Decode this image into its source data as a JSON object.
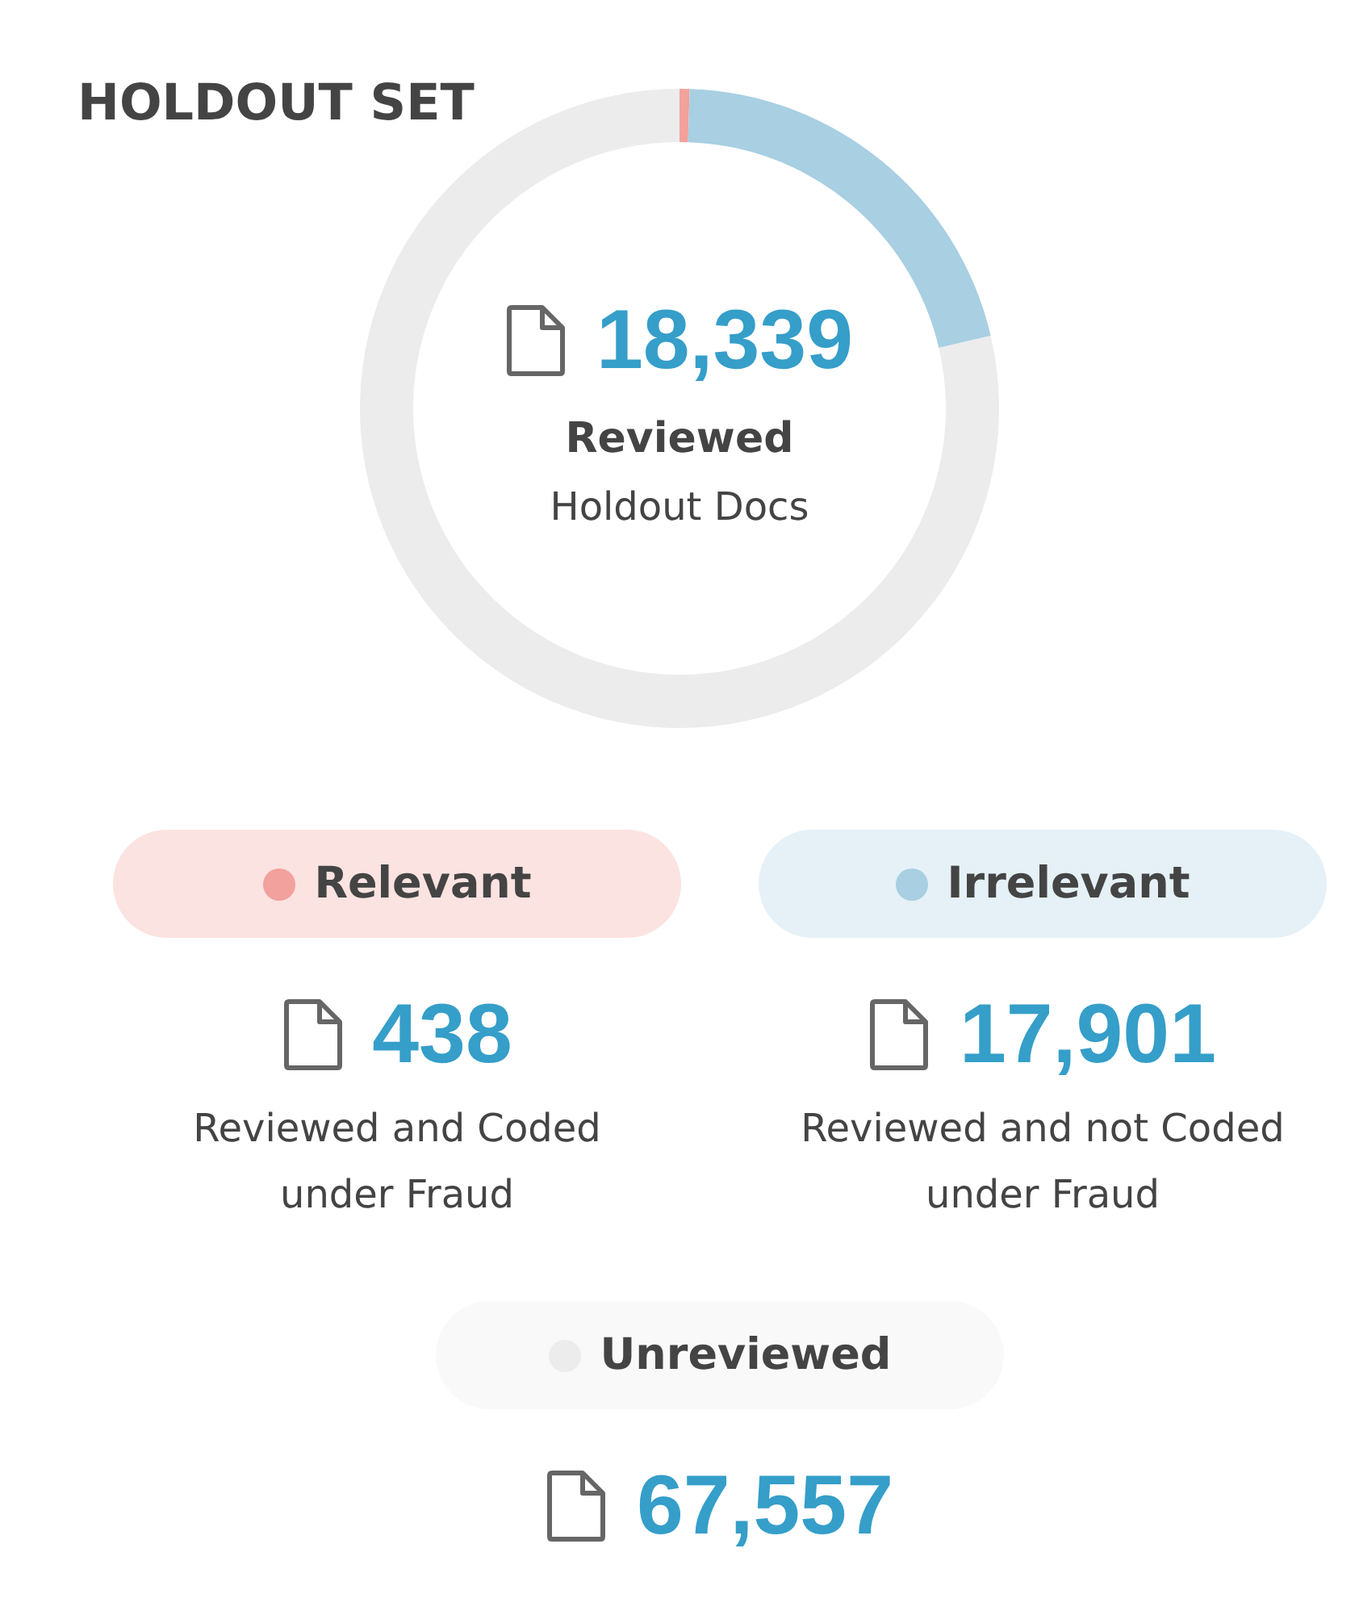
{
  "chart_data": {
    "type": "donut",
    "title": "HOLDOUT SET",
    "categories": [
      "Relevant",
      "Irrelevant",
      "Unreviewed"
    ],
    "values": [
      438,
      17901,
      67557
    ],
    "value_labels": [
      "438",
      "17,901",
      "67,557"
    ],
    "colors": [
      "#f2a19c",
      "#a8cfe2",
      "#ececec"
    ],
    "legend": "bottom",
    "annotations": [
      "18,339",
      "Reviewed",
      "Holdout Docs",
      "Reviewed and Coded under Fraud",
      "Reviewed and not Coded under Fraud"
    ]
  }
}
